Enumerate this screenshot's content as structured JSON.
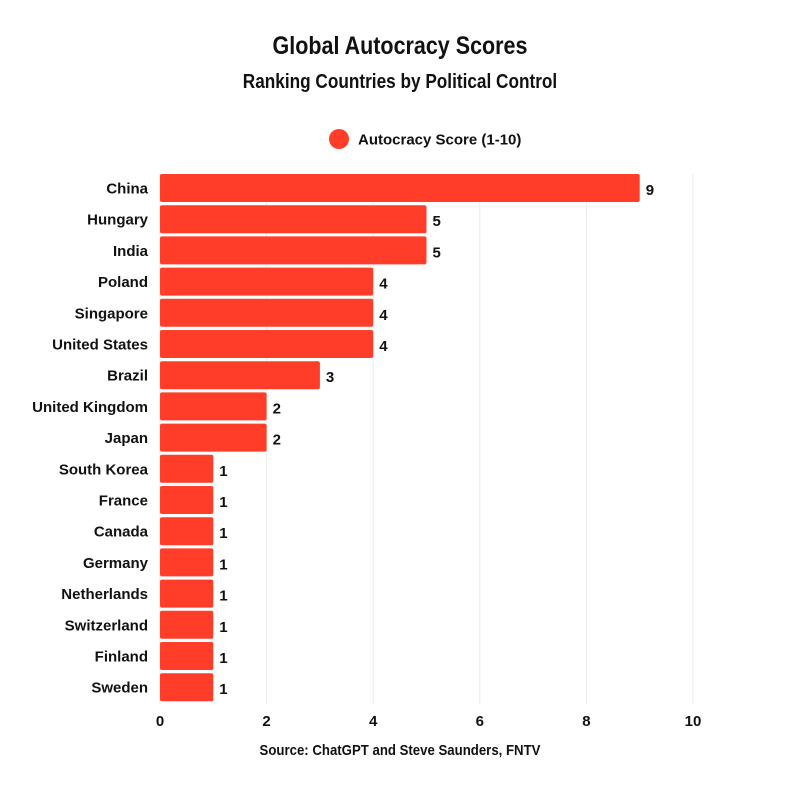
{
  "title": "Global Autocracy Scores",
  "subtitle": "Ranking Countries by Political Control",
  "source": "Source: ChatGPT and Steve Saunders, FNTV",
  "colors": {
    "bar": "#ff3d28",
    "grid": "#ebebeb",
    "text": "#111111"
  },
  "chart_data": {
    "type": "bar",
    "orientation": "horizontal",
    "title": "Global Autocracy Scores",
    "subtitle": "Ranking Countries by Political Control",
    "xlabel": "",
    "ylabel": "",
    "xlim": [
      0,
      10
    ],
    "x_ticks": [
      0,
      2,
      4,
      6,
      8,
      10
    ],
    "grid": true,
    "legend_position": "top-center",
    "categories": [
      "China",
      "Hungary",
      "India",
      "Poland",
      "Singapore",
      "United States",
      "Brazil",
      "United Kingdom",
      "Japan",
      "South Korea",
      "France",
      "Canada",
      "Germany",
      "Netherlands",
      "Switzerland",
      "Finland",
      "Sweden"
    ],
    "series": [
      {
        "name": "Autocracy Score (1-10)",
        "color": "#ff3d28",
        "values": [
          9,
          5,
          5,
          4,
          4,
          4,
          3,
          2,
          2,
          1,
          1,
          1,
          1,
          1,
          1,
          1,
          1
        ]
      }
    ]
  }
}
